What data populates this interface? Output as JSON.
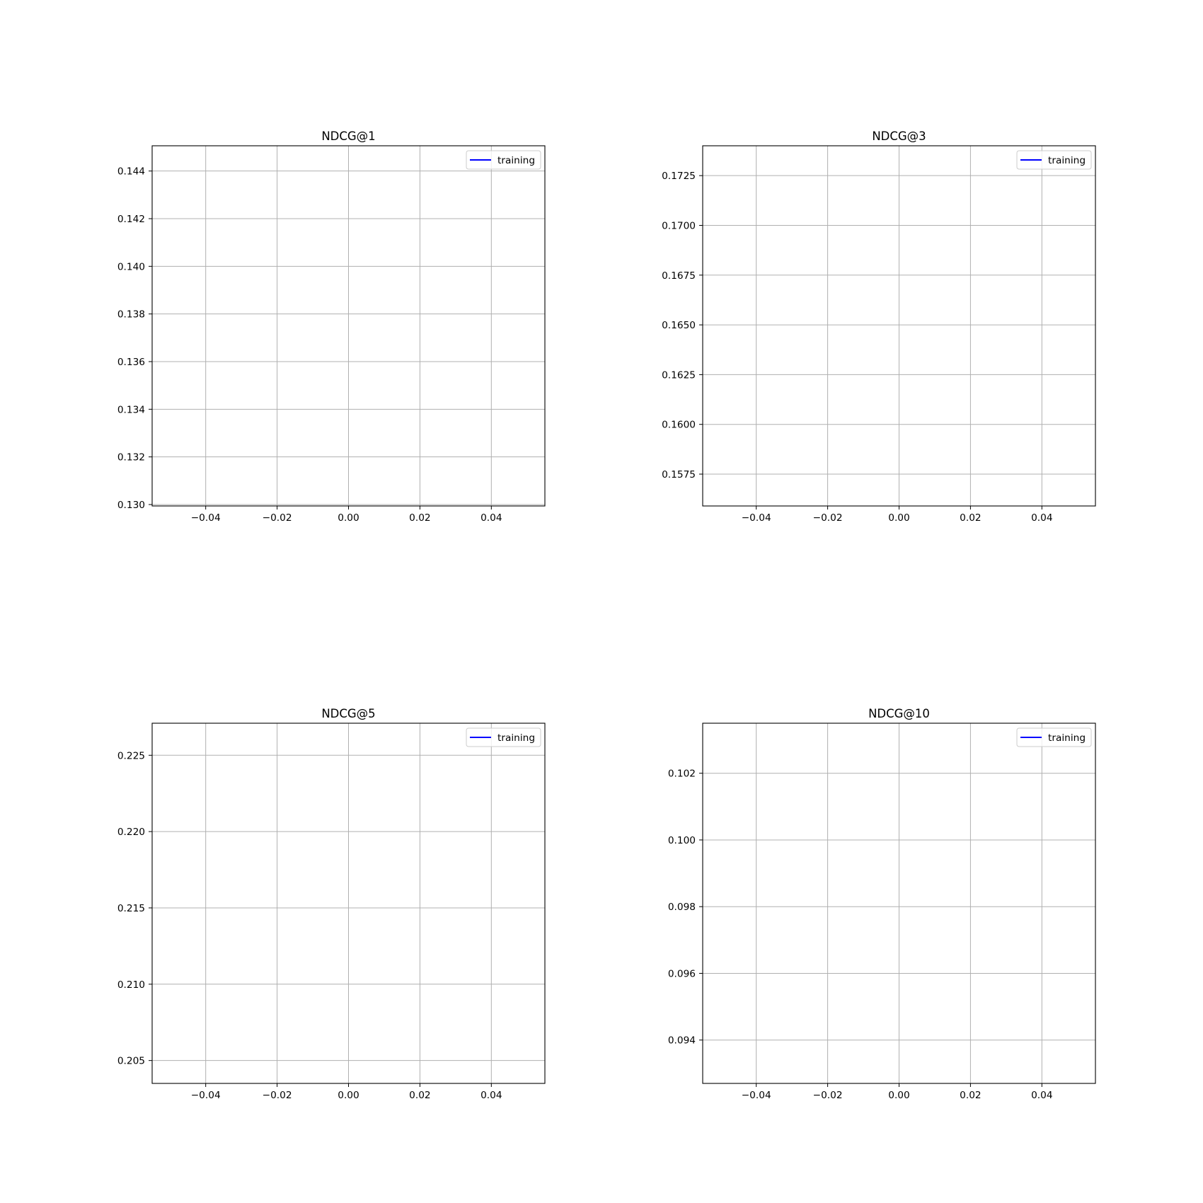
{
  "chart_data": [
    {
      "type": "line",
      "title": "NDCG@1",
      "xlabel": "",
      "ylabel": "",
      "xlim": [
        -0.055,
        0.055
      ],
      "ylim": [
        0.12994,
        0.14506
      ],
      "xticks": [
        -0.04,
        -0.02,
        0.0,
        0.02,
        0.04
      ],
      "xtick_labels": [
        "−0.04",
        "−0.02",
        "0.00",
        "0.02",
        "0.04"
      ],
      "yticks": [
        0.13,
        0.132,
        0.134,
        0.136,
        0.138,
        0.14,
        0.142,
        0.144
      ],
      "ytick_labels": [
        "0.130",
        "0.132",
        "0.134",
        "0.136",
        "0.138",
        "0.140",
        "0.142",
        "0.144"
      ],
      "grid": true,
      "legend_position": "top-right",
      "series": [
        {
          "name": "training",
          "color": "#0000ff",
          "x": [],
          "y": []
        }
      ]
    },
    {
      "type": "line",
      "title": "NDCG@3",
      "xlabel": "",
      "ylabel": "",
      "xlim": [
        -0.055,
        0.055
      ],
      "ylim": [
        0.1559,
        0.174
      ],
      "xticks": [
        -0.04,
        -0.02,
        0.0,
        0.02,
        0.04
      ],
      "xtick_labels": [
        "−0.04",
        "−0.02",
        "0.00",
        "0.02",
        "0.04"
      ],
      "yticks": [
        0.1575,
        0.16,
        0.1625,
        0.165,
        0.1675,
        0.17,
        0.1725
      ],
      "ytick_labels": [
        "0.1575",
        "0.1600",
        "0.1625",
        "0.1650",
        "0.1675",
        "0.1700",
        "0.1725"
      ],
      "grid": true,
      "legend_position": "top-right",
      "series": [
        {
          "name": "training",
          "color": "#0000ff",
          "x": [],
          "y": []
        }
      ]
    },
    {
      "type": "line",
      "title": "NDCG@5",
      "xlabel": "",
      "ylabel": "",
      "xlim": [
        -0.055,
        0.055
      ],
      "ylim": [
        0.2035,
        0.2271
      ],
      "xticks": [
        -0.04,
        -0.02,
        0.0,
        0.02,
        0.04
      ],
      "xtick_labels": [
        "−0.04",
        "−0.02",
        "0.00",
        "0.02",
        "0.04"
      ],
      "yticks": [
        0.205,
        0.21,
        0.215,
        0.22,
        0.225
      ],
      "ytick_labels": [
        "0.205",
        "0.210",
        "0.215",
        "0.220",
        "0.225"
      ],
      "grid": true,
      "legend_position": "top-right",
      "series": [
        {
          "name": "training",
          "color": "#0000ff",
          "x": [],
          "y": []
        }
      ]
    },
    {
      "type": "line",
      "title": "NDCG@10",
      "xlabel": "",
      "ylabel": "",
      "xlim": [
        -0.055,
        0.055
      ],
      "ylim": [
        0.0927,
        0.1035
      ],
      "xticks": [
        -0.04,
        -0.02,
        0.0,
        0.02,
        0.04
      ],
      "xtick_labels": [
        "−0.04",
        "−0.02",
        "0.00",
        "0.02",
        "0.04"
      ],
      "yticks": [
        0.094,
        0.096,
        0.098,
        0.1,
        0.102
      ],
      "ytick_labels": [
        "0.094",
        "0.096",
        "0.098",
        "0.100",
        "0.102"
      ],
      "grid": true,
      "legend_position": "top-right",
      "series": [
        {
          "name": "training",
          "color": "#0000ff",
          "x": [],
          "y": []
        }
      ]
    }
  ]
}
